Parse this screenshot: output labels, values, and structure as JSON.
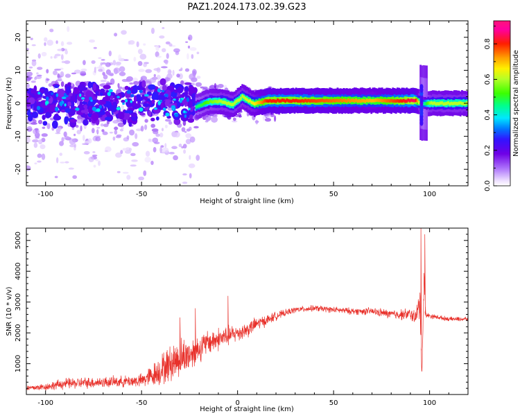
{
  "title": "PAZ1.2024.173.02.39.G23",
  "chart_data": [
    {
      "type": "heatmap",
      "xlabel": "Height of straight line (km)",
      "ylabel": "Frequency (Hz)",
      "xlim": [
        -110,
        120
      ],
      "ylim": [
        -25,
        25
      ],
      "xticks": [
        -100,
        -50,
        0,
        50,
        100
      ],
      "yticks": [
        -20,
        -10,
        0,
        10,
        20
      ],
      "colorbar": {
        "label": "Normalized spectral amplitude",
        "range": [
          0.0,
          0.93
        ],
        "ticks": [
          0.0,
          0.2,
          0.4,
          0.6,
          0.8
        ],
        "colormap": "gist_ncar",
        "min_color": "#ffffff"
      },
      "ridge": [
        {
          "x": -22,
          "y": -1.0,
          "value": 0.45
        },
        {
          "x": -15,
          "y": 0.5,
          "value": 0.55
        },
        {
          "x": -8,
          "y": 0.5,
          "value": 0.6
        },
        {
          "x": -3,
          "y": -0.5,
          "value": 0.6
        },
        {
          "x": 2,
          "y": 2.0,
          "value": 0.6
        },
        {
          "x": 8,
          "y": -0.2,
          "value": 0.65
        },
        {
          "x": 15,
          "y": 0.8,
          "value": 0.8
        },
        {
          "x": 30,
          "y": 0.8,
          "value": 0.8
        },
        {
          "x": 50,
          "y": 0.8,
          "value": 0.75
        },
        {
          "x": 70,
          "y": 0.8,
          "value": 0.7
        },
        {
          "x": 92,
          "y": 0.8,
          "value": 0.85
        },
        {
          "x": 96,
          "y": 0.0,
          "value": 0.4
        },
        {
          "x": 100,
          "y": 0.0,
          "value": 0.6
        },
        {
          "x": 120,
          "y": 0.0,
          "value": 0.6
        }
      ]
    },
    {
      "type": "line",
      "xlabel": "Height of straight line (km)",
      "ylabel": "SNR (10 * v/v)",
      "xlim": [
        -110,
        120
      ],
      "ylim": [
        0,
        5400
      ],
      "xticks": [
        -100,
        -50,
        0,
        50,
        100
      ],
      "yticks": [
        1000,
        2000,
        3000,
        4000,
        5000
      ],
      "color": "#e8302a",
      "series": [
        {
          "name": "",
          "x": [
            -110,
            -100,
            -90,
            -80,
            -70,
            -60,
            -50,
            -45,
            -40,
            -35,
            -30,
            -25,
            -20,
            -15,
            -10,
            -5,
            0,
            5,
            10,
            15,
            20,
            25,
            30,
            40,
            50,
            60,
            70,
            80,
            90,
            93,
            95,
            96,
            97,
            98,
            100,
            110,
            120
          ],
          "y": [
            200,
            250,
            350,
            380,
            400,
            420,
            450,
            600,
            800,
            1000,
            1200,
            1300,
            1500,
            1700,
            1800,
            1900,
            2000,
            2100,
            2300,
            2400,
            2550,
            2650,
            2750,
            2800,
            2750,
            2700,
            2700,
            2600,
            2600,
            2500,
            3000,
            700,
            3500,
            2600,
            2550,
            2450,
            2450
          ],
          "noise": [
            100,
            120,
            180,
            180,
            180,
            180,
            220,
            350,
            500,
            600,
            650,
            550,
            450,
            400,
            380,
            330,
            280,
            260,
            220,
            180,
            140,
            110,
            100,
            100,
            100,
            110,
            120,
            150,
            200,
            250,
            600,
            300,
            800,
            100,
            80,
            70,
            70
          ]
        }
      ],
      "spikes": [
        {
          "x": -30,
          "y": 2500
        },
        {
          "x": -22,
          "y": 2800
        },
        {
          "x": -5,
          "y": 3200
        },
        {
          "x": 95.5,
          "y": 5400
        },
        {
          "x": 97.5,
          "y": 5200
        }
      ]
    }
  ]
}
